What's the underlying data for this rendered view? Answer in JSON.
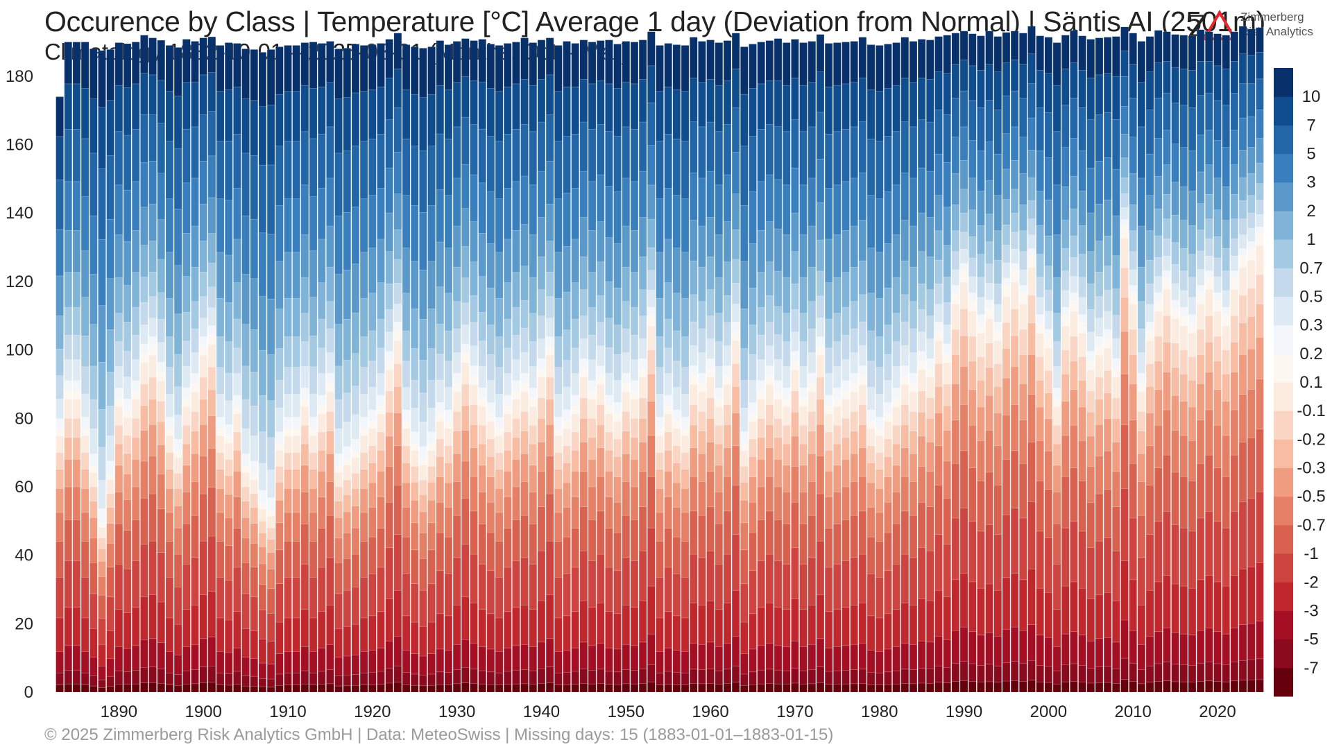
{
  "header": {
    "title": "Occurence by Class | Temperature [°C] Average 1 day (Deviation from Normal) | Säntis  AI (2501m)",
    "subtitle": "Climatology 1882-10-01 – 2025-03-31 (Months: Oct – Mar)"
  },
  "logo": {
    "line1": "Zimmerberg",
    "line2": "Risk Analytics",
    "accent_color": "#e8252b"
  },
  "footer": {
    "text": "©  2025 Zimmerberg Risk Analytics GmbH | Data: MeteoSwiss | Missing days: 15 (1883-01-01–1883-01-15)"
  },
  "chart_data": {
    "type": "bar",
    "stacked": true,
    "xlabel": "",
    "ylabel": "",
    "ylim": [
      0,
      182
    ],
    "yticks": [
      0,
      20,
      40,
      60,
      80,
      100,
      120,
      140,
      160,
      180
    ],
    "xticks": [
      1890,
      1900,
      1910,
      1920,
      1930,
      1940,
      1950,
      1960,
      1970,
      1980,
      1990,
      2000,
      2010,
      2020
    ],
    "grid": false,
    "legend": "colorbar-right",
    "first_season": 1883,
    "last_season": 2025,
    "class_labels": [
      "-7",
      "-5",
      "-3",
      "-2",
      "-1",
      "-0.7",
      "-0.5",
      "-0.3",
      "-0.2",
      "-0.1",
      "0.1",
      "0.2",
      "0.3",
      "0.5",
      "0.7",
      "1",
      "2",
      "3",
      "5",
      "7",
      "10"
    ],
    "class_colors": [
      "#67000d",
      "#8b0a1d",
      "#a50f24",
      "#c0282e",
      "#cd4440",
      "#d96150",
      "#e57f65",
      "#f09c80",
      "#f7bca2",
      "#fbd5c3",
      "#fcebdf",
      "#fdf7f2",
      "#f3f6fa",
      "#dde9f3",
      "#c4daec",
      "#a4c9e3",
      "#7fb3d8",
      "#5a99ca",
      "#3a7fbd",
      "#2266a8",
      "#0f4d8f",
      "#08306b"
    ],
    "season_totals": [
      167,
      182,
      182,
      183,
      182,
      183,
      182,
      182,
      182,
      182,
      183,
      182,
      182,
      182,
      182,
      183,
      182,
      182,
      182,
      182,
      183,
      182,
      182,
      182,
      182,
      183,
      182,
      182,
      182,
      182,
      183,
      182,
      182,
      182,
      182,
      183,
      182,
      182,
      182,
      182,
      183,
      182,
      182,
      182,
      182,
      183,
      182,
      182,
      182,
      182,
      183,
      182,
      182,
      182,
      182,
      183,
      182,
      182,
      182,
      182,
      183,
      182,
      182,
      182,
      182,
      183,
      182,
      182,
      182,
      182,
      183,
      182,
      182,
      182,
      182,
      183,
      182,
      182,
      182,
      182,
      183,
      182,
      182,
      182,
      182,
      183,
      182,
      182,
      182,
      182,
      183,
      182,
      182,
      182,
      182,
      183,
      182,
      182,
      182,
      182,
      183,
      182,
      182,
      182,
      182,
      183,
      182,
      182,
      182,
      182,
      183,
      182,
      182,
      182,
      182,
      183,
      182,
      182,
      182,
      182,
      183,
      182,
      182,
      182,
      182,
      183,
      182,
      182,
      182,
      182,
      183,
      182,
      182,
      182,
      182,
      183,
      182,
      182,
      182,
      182,
      183,
      182,
      182
    ],
    "warm_days_above_0": [
      70,
      80,
      80,
      70,
      60,
      45,
      58,
      78,
      75,
      80,
      90,
      92,
      85,
      70,
      64,
      78,
      82,
      92,
      95,
      70,
      68,
      76,
      60,
      58,
      50,
      48,
      66,
      70,
      70,
      78,
      70,
      76,
      82,
      60,
      62,
      64,
      70,
      72,
      76,
      88,
      96,
      72,
      66,
      62,
      66,
      74,
      72,
      82,
      90,
      84,
      78,
      74,
      70,
      76,
      80,
      82,
      78,
      86,
      92,
      70,
      72,
      76,
      86,
      80,
      84,
      76,
      74,
      82,
      80,
      86,
      100,
      70,
      76,
      72,
      70,
      84,
      82,
      86,
      78,
      84,
      96,
      66,
      74,
      80,
      84,
      80,
      78,
      88,
      78,
      82,
      92,
      76,
      78,
      80,
      82,
      84,
      72,
      70,
      74,
      78,
      84,
      82,
      88,
      86,
      96,
      90,
      106,
      112,
      104,
      98,
      102,
      96,
      108,
      112,
      106,
      116,
      98,
      94,
      78,
      100,
      104,
      98,
      88,
      92,
      94,
      86,
      124,
      106,
      82,
      96,
      104,
      110,
      102,
      100,
      98,
      106,
      110,
      104,
      100,
      110,
      116,
      118,
      122
    ]
  }
}
